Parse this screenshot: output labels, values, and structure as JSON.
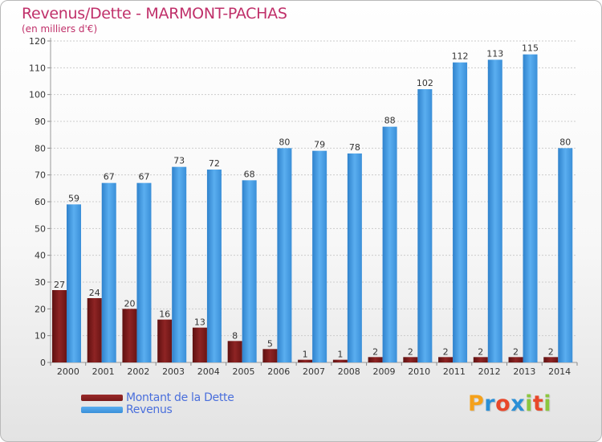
{
  "title": "Revenus/Dette - MARMONT-PACHAS",
  "subtitle": "(en milliers d'€)",
  "logo": {
    "text": "Proxiti",
    "colors": [
      "#f5a11a",
      "#2a8fd6",
      "#e8472a",
      "#2a8fd6",
      "#8cc63f",
      "#e8472a",
      "#8cc63f"
    ]
  },
  "legend": [
    {
      "label": "Montant de la Dette",
      "color": "#7a1a1a"
    },
    {
      "label": "Revenus",
      "color": "#3a8fd8"
    }
  ],
  "chart_data": {
    "type": "bar",
    "title": "Revenus/Dette - MARMONT-PACHAS",
    "subtitle": "(en milliers d'€)",
    "categories": [
      "2000",
      "2001",
      "2002",
      "2003",
      "2004",
      "2005",
      "2006",
      "2007",
      "2008",
      "2009",
      "2010",
      "2011",
      "2012",
      "2013",
      "2014"
    ],
    "series": [
      {
        "name": "Montant de la Dette",
        "color": "#7a1a1a",
        "values": [
          27,
          24,
          20,
          16,
          13,
          8,
          5,
          1,
          1,
          2,
          2,
          2,
          2,
          2,
          2
        ]
      },
      {
        "name": "Revenus",
        "color": "#3a8fd8",
        "values": [
          59,
          67,
          67,
          73,
          72,
          68,
          80,
          79,
          78,
          88,
          102,
          112,
          113,
          115,
          80
        ]
      }
    ],
    "ylim": [
      0,
      120
    ],
    "yticks": [
      0,
      10,
      20,
      30,
      40,
      50,
      60,
      70,
      80,
      90,
      100,
      110,
      120
    ],
    "grid": true,
    "legend_position": "bottom-left"
  }
}
